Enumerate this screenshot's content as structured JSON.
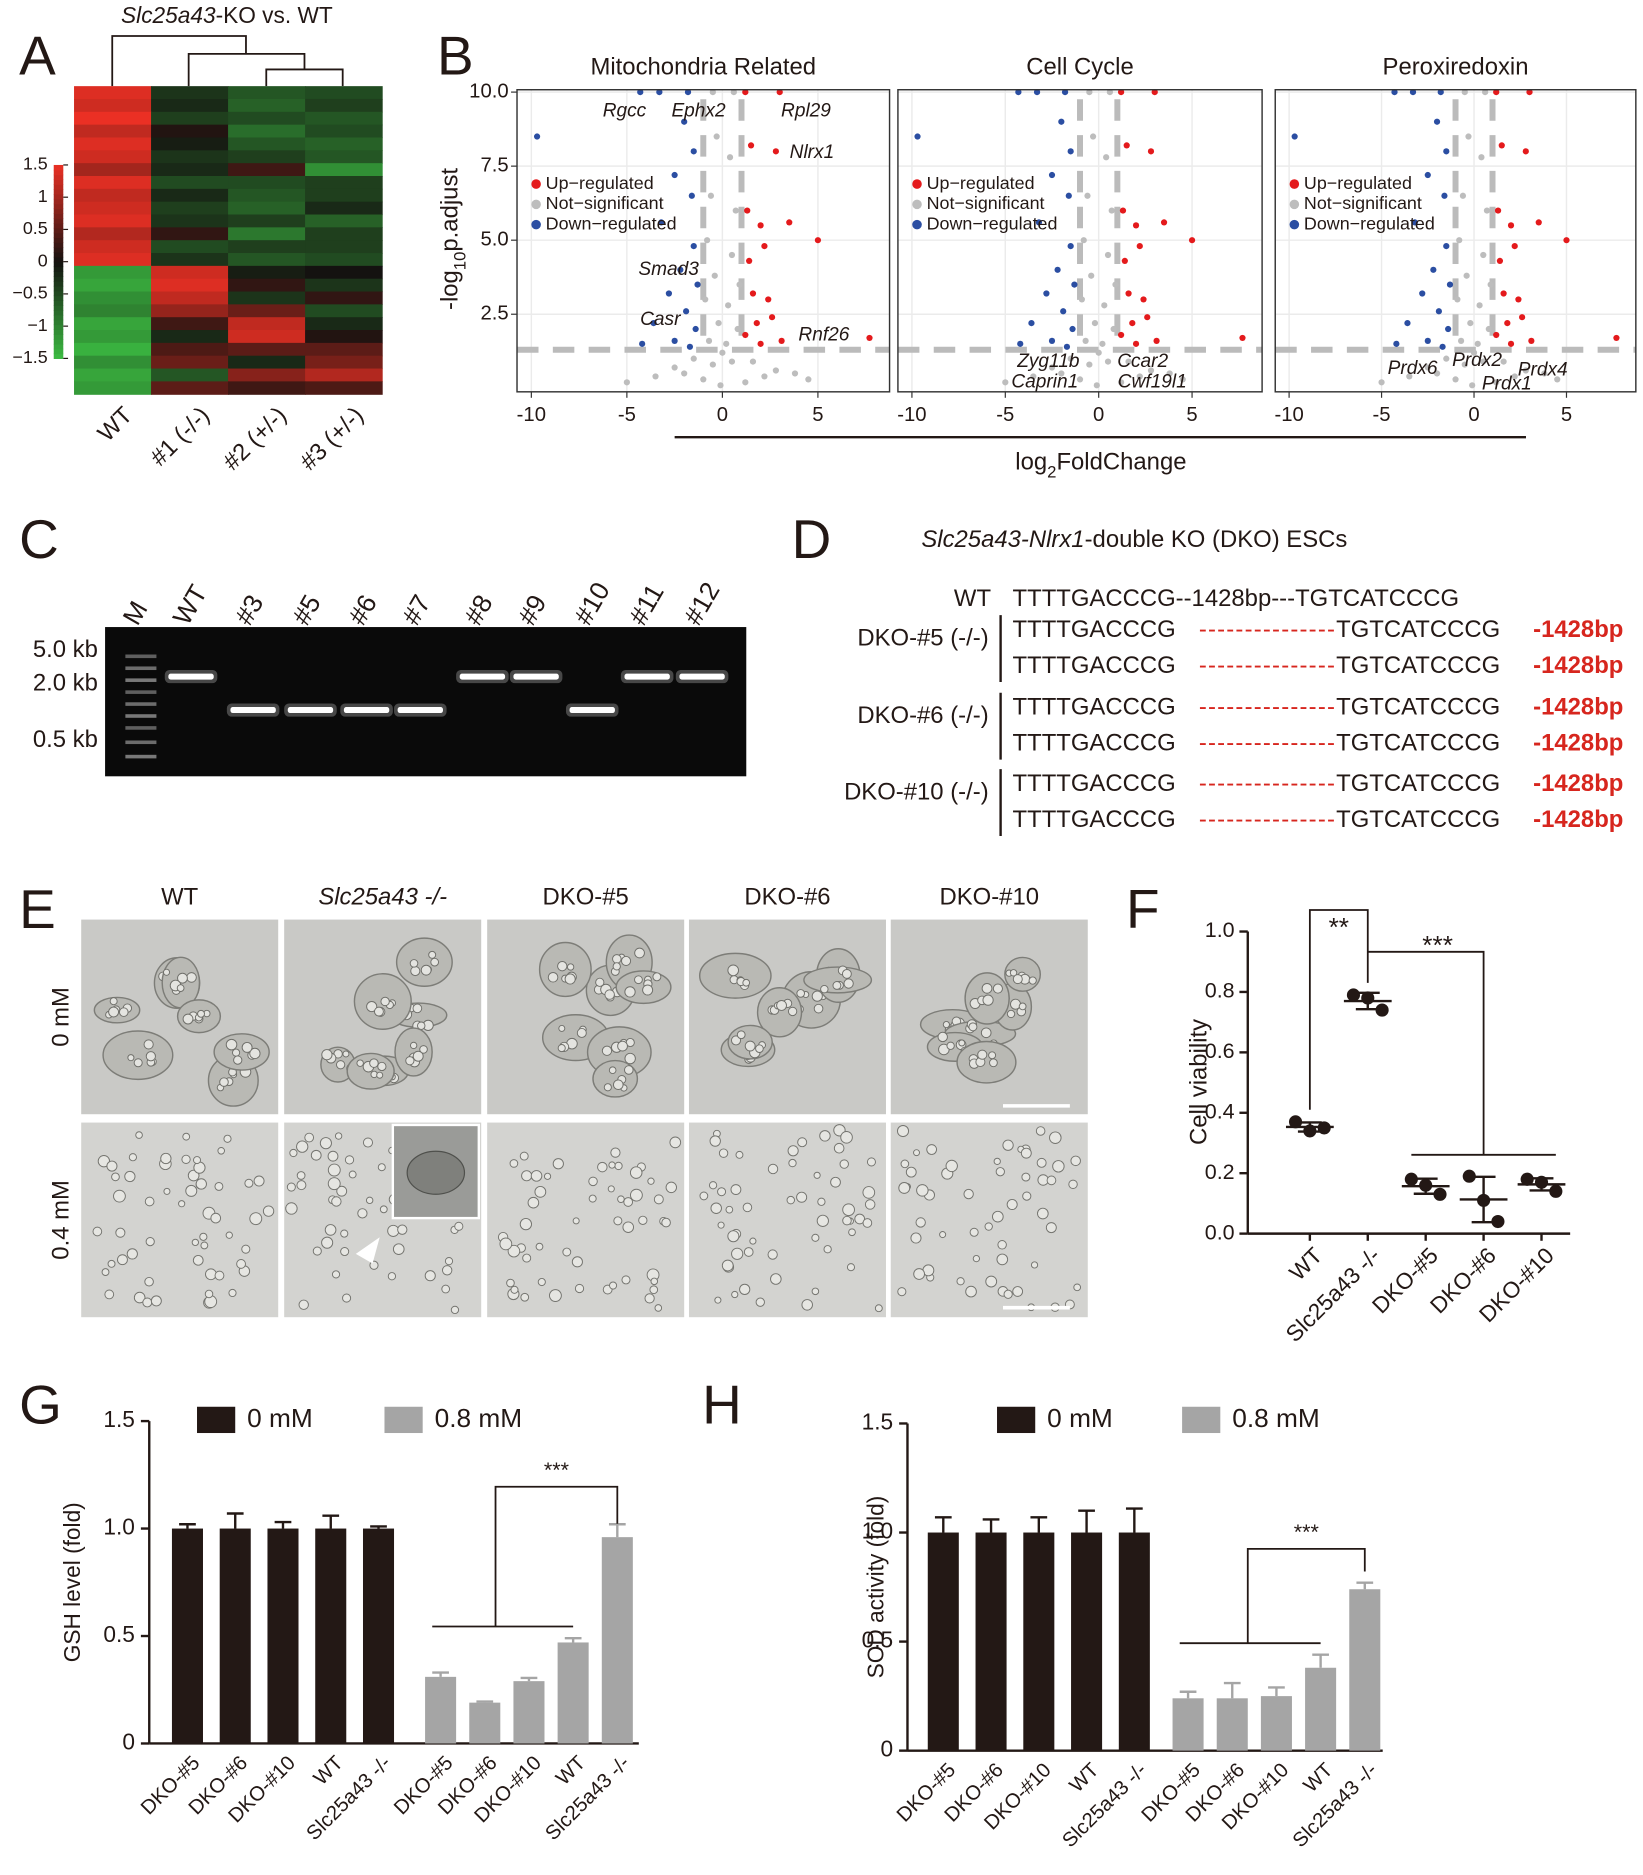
{
  "panel_labels": [
    "A",
    "B",
    "C",
    "D",
    "E",
    "F",
    "G",
    "H"
  ],
  "heatmap": {
    "title_italic": "Slc25a43",
    "title_rest": "-KO vs. WT",
    "columns": [
      "WT",
      "#1 (-/-)",
      "#2 (+/-)",
      "#3 (+/-)"
    ],
    "clim": [
      -1.5,
      1.5
    ],
    "colorbar_ticks": [
      1.5,
      1,
      0.5,
      0,
      {
        "value": -0.5,
        "label": "−0.5"
      },
      {
        "value": -1,
        "label": "−1"
      },
      {
        "value": -1.5,
        "label": "−1.5"
      }
    ],
    "matrix": [
      [
        1.4,
        -0.3,
        -0.6,
        -0.5
      ],
      [
        1.3,
        -0.2,
        -0.7,
        -0.4
      ],
      [
        1.5,
        -0.4,
        -0.5,
        -0.6
      ],
      [
        1.2,
        0.1,
        -0.8,
        -0.5
      ],
      [
        1.4,
        -0.1,
        -0.6,
        -0.7
      ],
      [
        1.3,
        -0.3,
        -0.4,
        -0.6
      ],
      [
        1.0,
        -0.2,
        0.3,
        -1.1
      ],
      [
        1.4,
        -0.5,
        -0.5,
        -0.4
      ],
      [
        1.2,
        -0.2,
        -0.6,
        -0.4
      ],
      [
        1.3,
        -0.4,
        -0.7,
        -0.2
      ],
      [
        1.4,
        -0.3,
        -0.4,
        -0.7
      ],
      [
        1.1,
        0.2,
        -0.9,
        -0.4
      ],
      [
        1.3,
        -0.5,
        -0.4,
        -0.4
      ],
      [
        1.4,
        -0.3,
        -0.6,
        -0.5
      ],
      [
        -1.2,
        1.3,
        -0.1,
        0.0
      ],
      [
        -1.3,
        1.4,
        0.2,
        -0.3
      ],
      [
        -1.1,
        1.2,
        -0.3,
        0.2
      ],
      [
        -1.0,
        0.9,
        0.6,
        -0.5
      ],
      [
        -1.3,
        0.3,
        1.2,
        -0.2
      ],
      [
        -1.2,
        -0.2,
        1.3,
        0.1
      ],
      [
        -1.4,
        0.4,
        0.5,
        0.5
      ],
      [
        -1.1,
        0.6,
        -0.2,
        0.7
      ],
      [
        -1.3,
        -0.6,
        0.8,
        1.1
      ],
      [
        -1.2,
        0.5,
        0.3,
        0.4
      ]
    ]
  },
  "gel": {
    "lanes": [
      "M",
      "WT",
      "#3",
      "#5",
      "#6",
      "#7",
      "#8",
      "#9",
      "#10",
      "#11",
      "#12"
    ],
    "size_labels": [
      "5.0 kb",
      "2.0 kb",
      "0.5 kb"
    ]
  },
  "sequences": {
    "title_italic": "Slc25a43-Nlrx1",
    "title_rest": "-double KO (DKO) ESCs",
    "wt": {
      "label": "WT",
      "seq": "TTTTGACCCG--1428bp---TGTCATCCCG"
    },
    "clones": [
      {
        "label": "DKO-#5 (-/-)",
        "alleles": [
          {
            "left": "TTTTGACCCG",
            "gap": "---------------",
            "right": "TGTCATCCCG",
            "deletion": "-1428bp"
          },
          {
            "left": "TTTTGACCCG",
            "gap": "---------------",
            "right": "TGTCATCCCG",
            "deletion": "-1428bp"
          }
        ]
      },
      {
        "label": "DKO-#6 (-/-)",
        "alleles": [
          {
            "left": "TTTTGACCCG",
            "gap": "---------------",
            "right": "TGTCATCCCG",
            "deletion": "-1428bp"
          },
          {
            "left": "TTTTGACCCG",
            "gap": "---------------",
            "right": "TGTCATCCCG",
            "deletion": "-1428bp"
          }
        ]
      },
      {
        "label": "DKO-#10 (-/-)",
        "alleles": [
          {
            "left": "TTTTGACCCG",
            "gap": "---------------",
            "right": "TGTCATCCCG",
            "deletion": "-1428bp"
          },
          {
            "left": "TTTTGACCCG",
            "gap": "---------------",
            "right": "TGTCATCCCG",
            "deletion": "-1428bp"
          }
        ]
      }
    ]
  },
  "micrographs": {
    "columns": [
      "WT",
      "Slc25a43 -/-",
      "DKO-#5",
      "DKO-#6",
      "DKO-#10"
    ],
    "rows": [
      "0 mM",
      "0.4 mM"
    ]
  },
  "chart_data": [
    {
      "type": "volcano",
      "titles": [
        "Mitochondria Related",
        "Cell Cycle",
        "Peroxiredoxin"
      ],
      "xlabel_parts": [
        "log",
        "2",
        "FoldChange"
      ],
      "ylabel_parts": [
        "-log",
        "10",
        "p.adjust"
      ],
      "xlim": [
        -10.75,
        8.75
      ],
      "ylim": [
        -0.12,
        10.08
      ],
      "xticks": [
        -10,
        -5,
        0,
        5
      ],
      "yticks": [
        2.5,
        {
          "value": 5,
          "label": "5.0"
        },
        7.5,
        {
          "value": 10,
          "label": "10.0"
        }
      ],
      "grid": true,
      "thresholds": {
        "x": [
          -1,
          1
        ],
        "y": 1.3
      },
      "series": [
        {
          "name": "Up−regulated",
          "color": "#e41a1c",
          "x": [
            1.2,
            3.0,
            1.5,
            2.8,
            1.3,
            2.0,
            3.5,
            1.4,
            2.2,
            1.6,
            2.4,
            1.8,
            2.6,
            1.2,
            3.1,
            7.7,
            5.0,
            2.0
          ],
          "y": [
            10.0,
            10.0,
            8.2,
            8.0,
            6.0,
            5.5,
            5.6,
            4.3,
            4.8,
            3.2,
            3.0,
            2.2,
            2.4,
            1.8,
            1.6,
            1.7,
            5.0,
            1.5
          ]
        },
        {
          "name": "Not−significant",
          "color": "#bdbdbd",
          "x": [
            -0.5,
            0.6,
            -0.3,
            0.4,
            -0.6,
            0.7,
            -0.8,
            0.5,
            -0.4,
            0.9,
            -0.9,
            0.3,
            -0.2,
            0.8,
            -0.7,
            0.2,
            -1.5,
            1.6,
            -2.5,
            2.8,
            -3.5,
            3.8,
            -0.5,
            0.5,
            -1.0,
            1.2,
            -5.0,
            4.5,
            0.0,
            -2.0,
            2.2,
            -0.1
          ],
          "y": [
            10.0,
            10.0,
            8.5,
            7.8,
            6.5,
            6.0,
            5.0,
            4.5,
            3.8,
            3.5,
            3.0,
            2.8,
            2.2,
            2.0,
            1.6,
            1.5,
            1.0,
            0.9,
            0.7,
            0.6,
            0.4,
            0.5,
            0.8,
            0.9,
            0.3,
            0.2,
            0.2,
            0.3,
            1.2,
            0.5,
            0.4,
            0.1
          ]
        },
        {
          "name": "Down−regulated",
          "color": "#2b4ea2",
          "x": [
            -4.3,
            -3.3,
            -1.8,
            -9.7,
            -2.0,
            -1.5,
            -2.5,
            -1.6,
            -3.2,
            -1.5,
            -2.2,
            -1.3,
            -2.8,
            -1.9,
            -3.6,
            -1.4,
            -2.5,
            -4.2,
            -1.7
          ],
          "y": [
            10.0,
            10.0,
            10.0,
            8.5,
            9.0,
            8.0,
            7.2,
            6.5,
            5.6,
            4.8,
            4.0,
            3.5,
            3.2,
            2.6,
            2.2,
            2.0,
            1.6,
            1.5,
            1.4
          ]
        }
      ],
      "annotations": [
        [
          "Rgcc",
          "Ephx2",
          "Rpl29",
          "Nlrx1",
          "Smad3",
          "Casr",
          "Rnf26"
        ],
        [
          "Zyg11b",
          "Ccar2",
          "Caprin1",
          "Cwf19l1"
        ],
        [
          "Prdx6",
          "Prdx2",
          "Prdx4",
          "Prdx1"
        ]
      ]
    },
    {
      "type": "dot_errorbar",
      "ylabel": "Cell viability",
      "categories": [
        "WT",
        "Slc25a43 -/-",
        "DKO-#5",
        "DKO-#6",
        "DKO-#10"
      ],
      "points": [
        [
          0.37,
          0.34,
          0.35
        ],
        [
          0.79,
          0.78,
          0.74
        ],
        [
          0.18,
          0.16,
          0.13
        ],
        [
          0.19,
          0.11,
          0.04
        ],
        [
          0.18,
          0.17,
          0.14
        ]
      ],
      "means": [
        0.353,
        0.77,
        0.157,
        0.113,
        0.163
      ],
      "errors": [
        0.015,
        0.027,
        0.025,
        0.075,
        0.02
      ],
      "ylim": [
        0,
        1
      ],
      "yticks": [
        {
          "value": 0,
          "label": "0.0"
        },
        0.2,
        0.4,
        0.6,
        0.8,
        {
          "value": 1,
          "label": "1.0"
        }
      ],
      "annotations": [
        "**",
        "***"
      ]
    },
    {
      "type": "grouped_bar",
      "ylabel": "GSH level (fold)",
      "categories": [
        "DKO-#5",
        "DKO-#6",
        "DKO-#10",
        "WT",
        "Slc25a43 -/-"
      ],
      "series": [
        {
          "name": "0 mM",
          "color": "#231815",
          "values": [
            1,
            1,
            1,
            1,
            1
          ],
          "errors": [
            0.02,
            0.07,
            0.03,
            0.06,
            0.01
          ]
        },
        {
          "name": "0.8 mM",
          "color": "#a5a5a5",
          "values": [
            0.31,
            0.19,
            0.29,
            0.47,
            0.96
          ],
          "errors": [
            0.02,
            0.005,
            0.015,
            0.02,
            0.06
          ]
        }
      ],
      "ylim": [
        0,
        1.5
      ],
      "yticks": [
        0,
        0.5,
        {
          "value": 1,
          "label": "1.0"
        },
        1.5
      ],
      "annotation": "***"
    },
    {
      "type": "grouped_bar",
      "ylabel": "SOD activity (fold)",
      "categories": [
        "DKO-#5",
        "DKO-#6",
        "DKO-#10",
        "WT",
        "Slc25a43 -/-"
      ],
      "series": [
        {
          "name": "0 mM",
          "color": "#231815",
          "values": [
            1,
            1,
            1,
            1,
            1
          ],
          "errors": [
            0.07,
            0.06,
            0.07,
            0.1,
            0.11
          ]
        },
        {
          "name": "0.8 mM",
          "color": "#a5a5a5",
          "values": [
            0.24,
            0.24,
            0.25,
            0.38,
            0.74
          ],
          "errors": [
            0.03,
            0.07,
            0.04,
            0.06,
            0.03
          ]
        }
      ],
      "ylim": [
        0,
        1.5
      ],
      "yticks": [
        0,
        0.5,
        {
          "value": 1,
          "label": "1.0"
        },
        1.5
      ],
      "annotation": "***"
    }
  ]
}
